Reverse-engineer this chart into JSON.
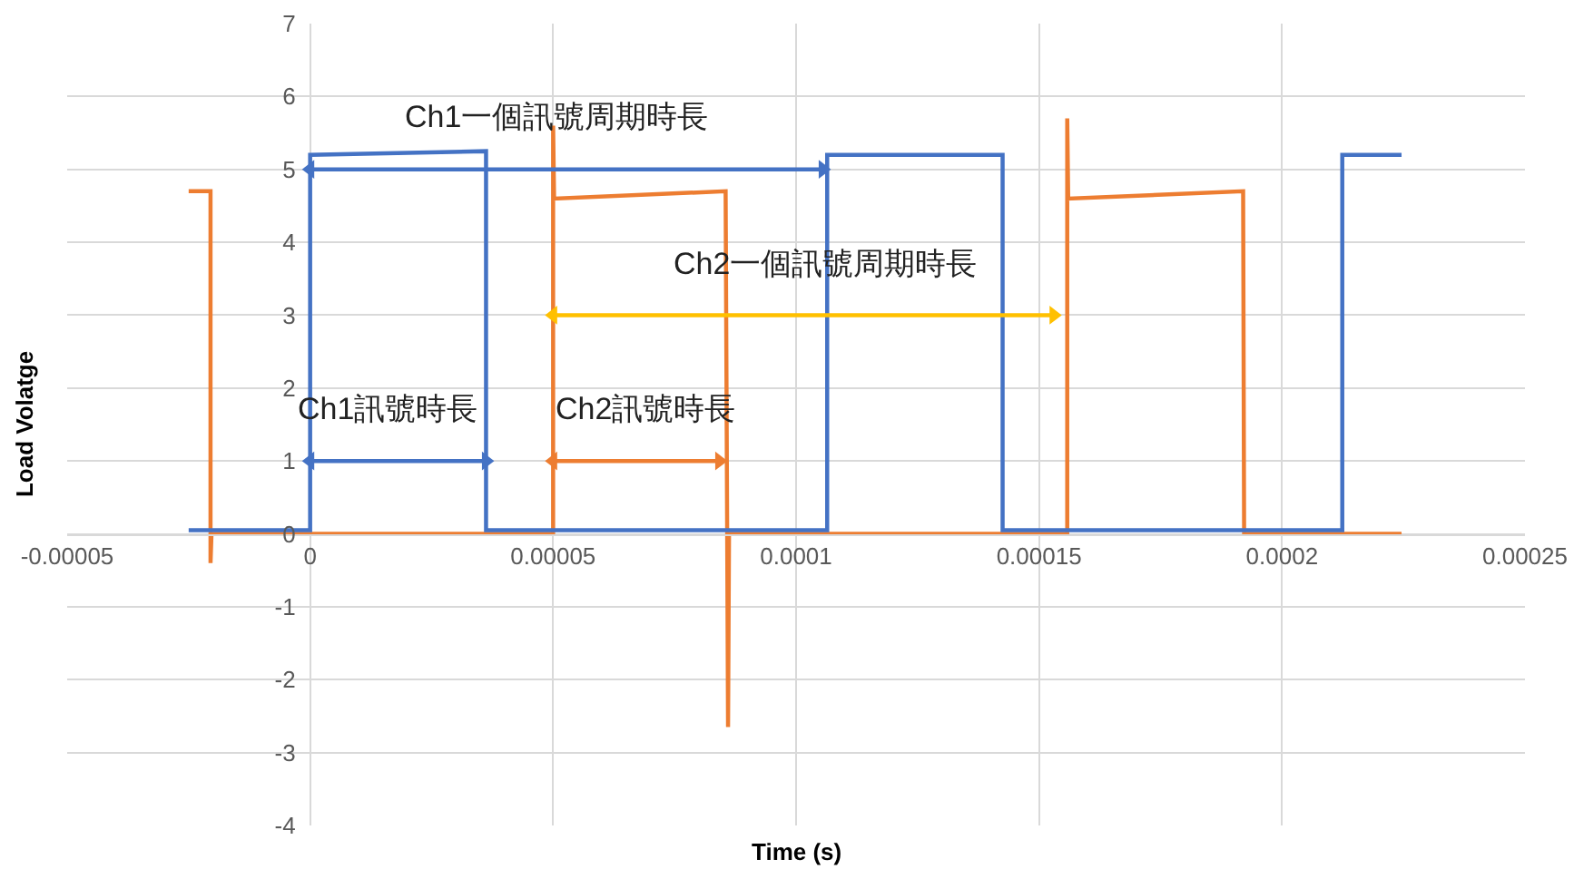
{
  "chart_data": {
    "type": "line",
    "xlabel": "Time (s)",
    "ylabel": "Load Volatge",
    "xlim": [
      -5e-05,
      0.00025
    ],
    "xticks": [
      {
        "value": -5e-05,
        "label": "-0.00005"
      },
      0,
      {
        "value": 5e-05,
        "label": "0.00005"
      },
      0.0001,
      0.00015,
      0.0002,
      0.00025
    ],
    "ylim": [
      -4,
      7
    ],
    "yticks": [
      -4,
      -3,
      -2,
      -1,
      0,
      1,
      2,
      3,
      4,
      5,
      6,
      7
    ],
    "grid": true,
    "marker": "none",
    "line_style": "solid",
    "series": [
      {
        "color": "#ed7d31",
        "x": [
          -2.5e-05,
          -2.05e-05,
          -2.05e-05,
          -2.03e-05,
          5e-05,
          5e-05,
          5.02e-05,
          8.55e-05,
          8.6e-05,
          8.62e-05,
          0.0001558,
          0.0001558,
          0.000156,
          0.000192,
          0.0001922,
          0.0002246
        ],
        "values": [
          4.7,
          4.7,
          -0.4,
          0,
          0,
          5.6,
          4.6,
          4.7,
          -2.65,
          0,
          0,
          5.7,
          4.6,
          4.7,
          0,
          0
        ]
      },
      {
        "color": "#4472c4",
        "x": [
          -2.5e-05,
          0,
          0,
          3.62e-05,
          3.62e-05,
          0.0001064,
          0.0001064,
          0.0001425,
          0.0001425,
          0.0002124,
          0.0002124,
          0.0002246
        ],
        "values": [
          0.05,
          0.05,
          5.2,
          5.25,
          0.05,
          0.05,
          5.2,
          5.2,
          0.05,
          0.05,
          5.2,
          5.2
        ]
      },
      {
        "color": "#4472c4",
        "marker": "triangle",
        "x": [
          0,
          0.0001055
        ],
        "values": [
          5,
          5
        ]
      },
      {
        "color": "#ffc000",
        "marker": "triangle",
        "x": [
          5e-05,
          0.000153
        ],
        "values": [
          3,
          3
        ]
      },
      {
        "color": "#4472c4",
        "marker": "triangle",
        "x": [
          0,
          3.62e-05
        ],
        "values": [
          1,
          1
        ]
      },
      {
        "color": "#ed7d31",
        "marker": "triangle",
        "x": [
          5e-05,
          8.42e-05
        ],
        "values": [
          1,
          1
        ]
      }
    ],
    "annotations": [
      {
        "text": "Ch1一個訊號周期時長",
        "x": 5.08e-05,
        "y": 5
      },
      {
        "text": "Ch2一個訊號周期時長",
        "x": 0.000106,
        "y": 3
      },
      {
        "text": "Ch1訊號時長",
        "x": 1.6e-05,
        "y": 1
      },
      {
        "text": "Ch2訊號時長",
        "x": 6.9e-05,
        "y": 1
      }
    ]
  }
}
